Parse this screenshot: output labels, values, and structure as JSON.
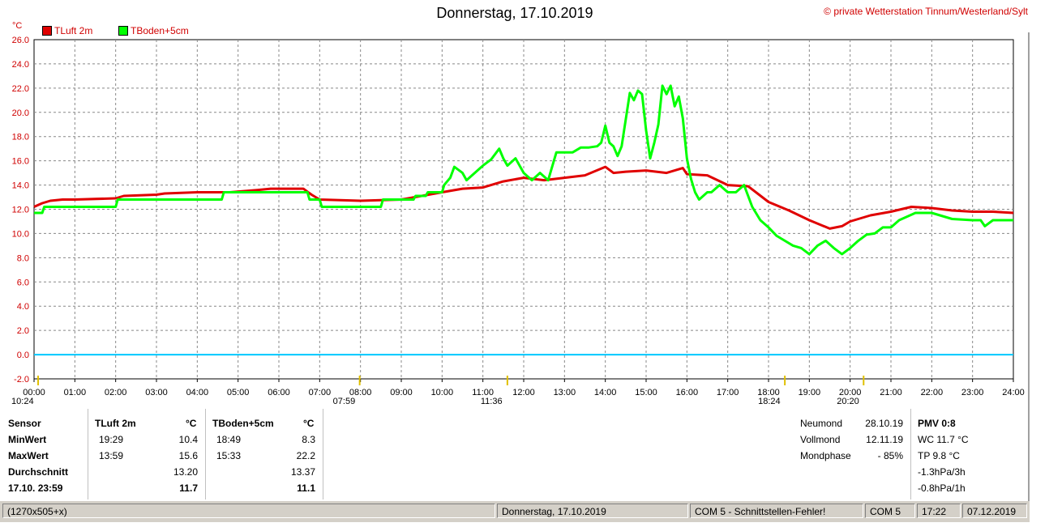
{
  "header": {
    "title": "Donnerstag, 17.10.2019",
    "credit": "© private Wetterstation Tinnum/Westerland/Sylt",
    "unit": "°C",
    "legend": [
      {
        "label": "TLuft 2m",
        "color": "#e00000"
      },
      {
        "label": "TBoden+5cm",
        "color": "#00ff00"
      }
    ]
  },
  "chart_data": {
    "type": "line",
    "title": "Donnerstag, 17.10.2019",
    "ylabel": "°C",
    "xlabel": "",
    "ylim": [
      -2.0,
      26.0
    ],
    "xlim": [
      0,
      24
    ],
    "grid": true,
    "legend_position": "top-left",
    "y_ticks": [
      "26.0",
      "24.0",
      "22.0",
      "20.0",
      "18.0",
      "16.0",
      "14.0",
      "12.0",
      "10.0",
      "8.0",
      "6.0",
      "4.0",
      "2.0",
      "0.0",
      "-2.0"
    ],
    "x_ticks": [
      "00:00",
      "01:00",
      "02:00",
      "03:00",
      "04:00",
      "05:00",
      "06:00",
      "07:00",
      "08:00",
      "09:00",
      "10:00",
      "11:00",
      "12:00",
      "13:00",
      "14:00",
      "15:00",
      "16:00",
      "17:00",
      "18:00",
      "19:00",
      "20:00",
      "21:00",
      "22:00",
      "23:00",
      "24:00"
    ],
    "zero_line": {
      "value": 0.0,
      "color": "#00c8ff"
    },
    "series": [
      {
        "name": "TLuft 2m",
        "color": "#e00000",
        "x": [
          0,
          0.2,
          0.4,
          0.7,
          1,
          2,
          2.2,
          3,
          3.2,
          4,
          4.8,
          5.5,
          5.8,
          6.6,
          6.8,
          7.0,
          8,
          9,
          9.5,
          10,
          10.5,
          11,
          11.5,
          12,
          12.5,
          13,
          13.5,
          14,
          14.2,
          14.5,
          15,
          15.5,
          15.9,
          16,
          16.5,
          17,
          17.5,
          18,
          18.5,
          19,
          19.5,
          19.8,
          20,
          20.5,
          21,
          21.5,
          22,
          22.5,
          23,
          23.5,
          24
        ],
        "y": [
          12.2,
          12.5,
          12.7,
          12.8,
          12.8,
          12.9,
          13.1,
          13.2,
          13.3,
          13.4,
          13.4,
          13.6,
          13.7,
          13.7,
          13.2,
          12.8,
          12.7,
          12.8,
          13.1,
          13.4,
          13.7,
          13.8,
          14.3,
          14.6,
          14.4,
          14.6,
          14.8,
          15.5,
          15.0,
          15.1,
          15.2,
          15.0,
          15.4,
          14.9,
          14.8,
          14.0,
          13.9,
          12.6,
          11.9,
          11.1,
          10.4,
          10.6,
          11.0,
          11.5,
          11.8,
          12.2,
          12.1,
          11.9,
          11.8,
          11.8,
          11.7
        ]
      },
      {
        "name": "TBoden+5cm",
        "color": "#00ff00",
        "x": [
          0,
          0.2,
          0.25,
          2.0,
          2.05,
          4.6,
          4.65,
          6.7,
          6.75,
          7.0,
          7.05,
          8.5,
          8.55,
          9.3,
          9.35,
          9.6,
          9.65,
          10.0,
          10.05,
          10.2,
          10.3,
          10.5,
          10.6,
          10.8,
          11.0,
          11.2,
          11.4,
          11.5,
          11.6,
          11.8,
          12.0,
          12.2,
          12.4,
          12.6,
          12.8,
          13.0,
          13.2,
          13.4,
          13.6,
          13.8,
          13.9,
          14.0,
          14.1,
          14.2,
          14.3,
          14.4,
          14.6,
          14.7,
          14.8,
          14.9,
          15.0,
          15.1,
          15.2,
          15.3,
          15.4,
          15.5,
          15.6,
          15.7,
          15.8,
          15.9,
          16.0,
          16.1,
          16.2,
          16.3,
          16.5,
          16.6,
          16.8,
          17.0,
          17.2,
          17.4,
          17.6,
          17.8,
          18.0,
          18.2,
          18.4,
          18.6,
          18.8,
          19.0,
          19.2,
          19.4,
          19.6,
          19.8,
          20.0,
          20.2,
          20.4,
          20.6,
          20.8,
          21.0,
          21.2,
          21.6,
          22.0,
          22.5,
          23.0,
          23.2,
          23.3,
          23.5,
          24.0
        ],
        "y": [
          11.7,
          11.7,
          12.2,
          12.2,
          12.8,
          12.8,
          13.4,
          13.4,
          12.8,
          12.8,
          12.2,
          12.2,
          12.8,
          12.8,
          13.1,
          13.1,
          13.4,
          13.4,
          14.0,
          14.6,
          15.5,
          15.0,
          14.4,
          15.0,
          15.6,
          16.1,
          17.0,
          16.2,
          15.6,
          16.2,
          15.0,
          14.4,
          15.0,
          14.4,
          16.7,
          16.7,
          16.7,
          17.1,
          17.1,
          17.2,
          17.5,
          18.9,
          17.5,
          17.2,
          16.4,
          17.2,
          21.6,
          21.0,
          21.8,
          21.5,
          18.5,
          16.2,
          17.5,
          19.0,
          22.2,
          21.5,
          22.2,
          20.5,
          21.3,
          19.5,
          16.2,
          14.5,
          13.4,
          12.8,
          13.4,
          13.4,
          14.0,
          13.4,
          13.4,
          14.0,
          12.2,
          11.1,
          10.5,
          9.8,
          9.4,
          9.0,
          8.8,
          8.3,
          9.0,
          9.4,
          8.8,
          8.3,
          8.8,
          9.4,
          9.9,
          10.0,
          10.5,
          10.5,
          11.1,
          11.7,
          11.7,
          11.2,
          11.1,
          11.1,
          10.6,
          11.1,
          11.1
        ]
      }
    ]
  },
  "events": [
    {
      "time": "10:24",
      "hour": 0.1
    },
    {
      "time": "07:59",
      "hour": 7.98
    },
    {
      "time": "11:36",
      "hour": 11.6
    },
    {
      "time": "18:24",
      "hour": 18.4
    },
    {
      "time": "20:20",
      "hour": 20.33
    }
  ],
  "stats": {
    "col_sensor": "Sensor",
    "col_tluft": "TLuft 2m",
    "col_tboden": "TBoden+5cm",
    "unit": "°C",
    "rows": [
      {
        "label": "MinWert",
        "t1": "19:29",
        "v1": "10.4",
        "t2": "18:49",
        "v2": "8.3"
      },
      {
        "label": "MaxWert",
        "t1": "13:59",
        "v1": "15.6",
        "t2": "15:33",
        "v2": "22.2"
      },
      {
        "label": "Durchschnitt",
        "t1": "",
        "v1": "13.20",
        "t2": "",
        "v2": "13.37"
      },
      {
        "label": "17.10. 23:59",
        "t1": "",
        "v1": "11.7",
        "t2": "",
        "v2": "11.1"
      }
    ],
    "moon": [
      {
        "label": "Neumond",
        "value": "28.10.19"
      },
      {
        "label": "Vollmond",
        "value": "12.11.19"
      },
      {
        "label": "Mondphase",
        "value": "- 85%"
      }
    ],
    "extra": [
      "PMV 0:8",
      "WC 11.7 °C",
      "TP 9.8 °C",
      "-1.3hPa/3h",
      "-0.8hPa/1h"
    ]
  },
  "statusbar": {
    "size": "(1270x505+x)",
    "date": "Donnerstag, 17.10.2019",
    "error": "COM 5 - Schnittstellen-Fehler!",
    "port": "COM 5",
    "time": "17:22",
    "today": "07.12.2019"
  }
}
